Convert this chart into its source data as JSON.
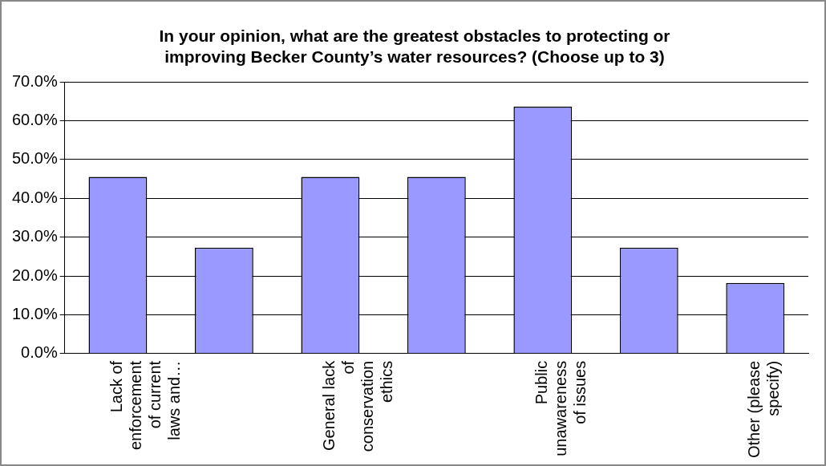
{
  "chart_data": {
    "type": "bar",
    "title": "In your opinion, what are the greatest obstacles to protecting or improving Becker County’s water resources? (Choose up to 3)",
    "categories": [
      "Lack of enforcement of current laws and…",
      null,
      "General lack of conservation ethics",
      null,
      "Public unawareness of issues",
      null,
      "Other (please specify)"
    ],
    "values": [
      45.5,
      27.3,
      45.5,
      45.5,
      63.6,
      27.3,
      18.2
    ],
    "color": "#9999ff",
    "ylim": [
      0,
      70
    ],
    "yticks": [
      {
        "value": 0,
        "label": "0.0%"
      },
      {
        "value": 10,
        "label": "10.0%"
      },
      {
        "value": 20,
        "label": "20.0%"
      },
      {
        "value": 30,
        "label": "30.0%"
      },
      {
        "value": 40,
        "label": "40.0%"
      },
      {
        "value": 50,
        "label": "50.0%"
      },
      {
        "value": 60,
        "label": "60.0%"
      },
      {
        "value": 70,
        "label": "70.0%"
      }
    ],
    "grid": "y",
    "legend": false
  }
}
